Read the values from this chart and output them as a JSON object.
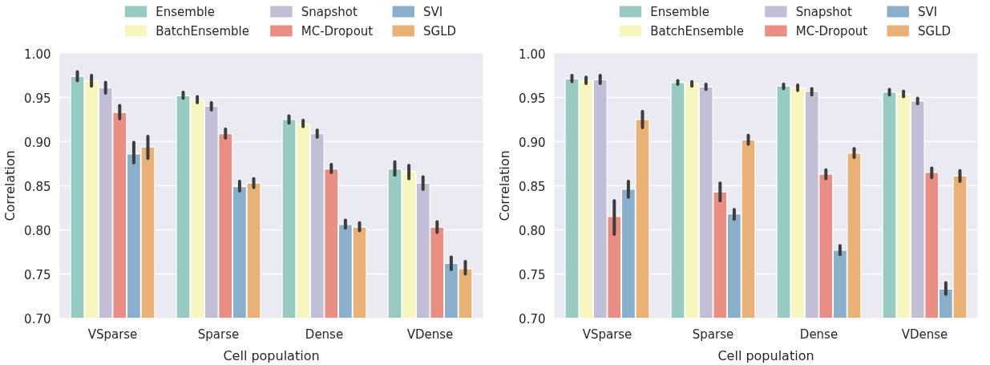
{
  "chart_data": [
    {
      "type": "bar",
      "categories": [
        "VSparse",
        "Sparse",
        "Dense",
        "VDense"
      ],
      "xlabel": "Cell population",
      "ylabel": "Correlation",
      "ylim": [
        0.7,
        1.0
      ],
      "yticks": [
        {
          "value": 0.7,
          "label": "0.70"
        },
        {
          "value": 0.75,
          "label": "0.75"
        },
        {
          "value": 0.8,
          "label": "0.80"
        },
        {
          "value": 0.85,
          "label": "0.85"
        },
        {
          "value": 0.9,
          "label": "0.90"
        },
        {
          "value": 0.95,
          "label": "0.95"
        },
        {
          "value": 1.0,
          "label": "1.00"
        }
      ],
      "grid": "y",
      "legend": "top",
      "series": [
        {
          "name": "Ensemble",
          "color": "#97cbc2",
          "values": [
            0.974,
            0.952,
            0.925,
            0.869
          ],
          "errors": [
            [
              0.969,
              0.979
            ],
            [
              0.949,
              0.956
            ],
            [
              0.921,
              0.929
            ],
            [
              0.862,
              0.877
            ]
          ]
        },
        {
          "name": "BatchEnsemble",
          "color": "#f6f6be",
          "values": [
            0.969,
            0.947,
            0.92,
            0.866
          ],
          "errors": [
            [
              0.963,
              0.975
            ],
            [
              0.944,
              0.951
            ],
            [
              0.917,
              0.924
            ],
            [
              0.858,
              0.873
            ]
          ]
        },
        {
          "name": "Snapshot",
          "color": "#c2bed6",
          "values": [
            0.961,
            0.94,
            0.909,
            0.853
          ],
          "errors": [
            [
              0.955,
              0.967
            ],
            [
              0.936,
              0.944
            ],
            [
              0.905,
              0.913
            ],
            [
              0.846,
              0.86
            ]
          ]
        },
        {
          "name": "MC-Dropout",
          "color": "#ea8e83",
          "values": [
            0.933,
            0.909,
            0.869,
            0.803
          ],
          "errors": [
            [
              0.926,
              0.941
            ],
            [
              0.904,
              0.914
            ],
            [
              0.865,
              0.874
            ],
            [
              0.797,
              0.809
            ]
          ]
        },
        {
          "name": "SVI",
          "color": "#8aafca",
          "values": [
            0.886,
            0.849,
            0.806,
            0.762
          ],
          "errors": [
            [
              0.876,
              0.899
            ],
            [
              0.844,
              0.855
            ],
            [
              0.802,
              0.811
            ],
            [
              0.755,
              0.769
            ]
          ]
        },
        {
          "name": "SGLD",
          "color": "#eab176",
          "values": [
            0.894,
            0.853,
            0.803,
            0.756
          ],
          "errors": [
            [
              0.881,
              0.906
            ],
            [
              0.848,
              0.858
            ],
            [
              0.799,
              0.808
            ],
            [
              0.75,
              0.764
            ]
          ]
        }
      ]
    },
    {
      "type": "bar",
      "categories": [
        "VSparse",
        "Sparse",
        "Dense",
        "VDense"
      ],
      "xlabel": "Cell population",
      "ylabel": "Correlation",
      "ylim": [
        0.7,
        1.0
      ],
      "yticks": [
        {
          "value": 0.7,
          "label": "0.70"
        },
        {
          "value": 0.75,
          "label": "0.75"
        },
        {
          "value": 0.8,
          "label": "0.80"
        },
        {
          "value": 0.85,
          "label": "0.85"
        },
        {
          "value": 0.9,
          "label": "0.90"
        },
        {
          "value": 0.95,
          "label": "0.95"
        },
        {
          "value": 1.0,
          "label": "1.00"
        }
      ],
      "grid": "y",
      "legend": "top",
      "series": [
        {
          "name": "Ensemble",
          "color": "#97cbc2",
          "values": [
            0.971,
            0.967,
            0.963,
            0.956
          ],
          "errors": [
            [
              0.968,
              0.975
            ],
            [
              0.965,
              0.969
            ],
            [
              0.96,
              0.965
            ],
            [
              0.953,
              0.959
            ]
          ]
        },
        {
          "name": "BatchEnsemble",
          "color": "#f6f6be",
          "values": [
            0.969,
            0.966,
            0.961,
            0.954
          ],
          "errors": [
            [
              0.966,
              0.973
            ],
            [
              0.963,
              0.968
            ],
            [
              0.958,
              0.964
            ],
            [
              0.951,
              0.957
            ]
          ]
        },
        {
          "name": "Snapshot",
          "color": "#c2bed6",
          "values": [
            0.97,
            0.962,
            0.957,
            0.946
          ],
          "errors": [
            [
              0.966,
              0.975
            ],
            [
              0.959,
              0.965
            ],
            [
              0.953,
              0.96
            ],
            [
              0.943,
              0.949
            ]
          ]
        },
        {
          "name": "MC-Dropout",
          "color": "#ea8e83",
          "values": [
            0.815,
            0.843,
            0.863,
            0.865
          ],
          "errors": [
            [
              0.795,
              0.833
            ],
            [
              0.833,
              0.853
            ],
            [
              0.858,
              0.868
            ],
            [
              0.859,
              0.87
            ]
          ]
        },
        {
          "name": "SVI",
          "color": "#8aafca",
          "values": [
            0.846,
            0.818,
            0.777,
            0.733
          ],
          "errors": [
            [
              0.837,
              0.855
            ],
            [
              0.812,
              0.823
            ],
            [
              0.772,
              0.782
            ],
            [
              0.727,
              0.74
            ]
          ]
        },
        {
          "name": "SGLD",
          "color": "#eab176",
          "values": [
            0.925,
            0.902,
            0.887,
            0.861
          ],
          "errors": [
            [
              0.916,
              0.934
            ],
            [
              0.897,
              0.907
            ],
            [
              0.882,
              0.892
            ],
            [
              0.855,
              0.867
            ]
          ]
        }
      ]
    }
  ]
}
